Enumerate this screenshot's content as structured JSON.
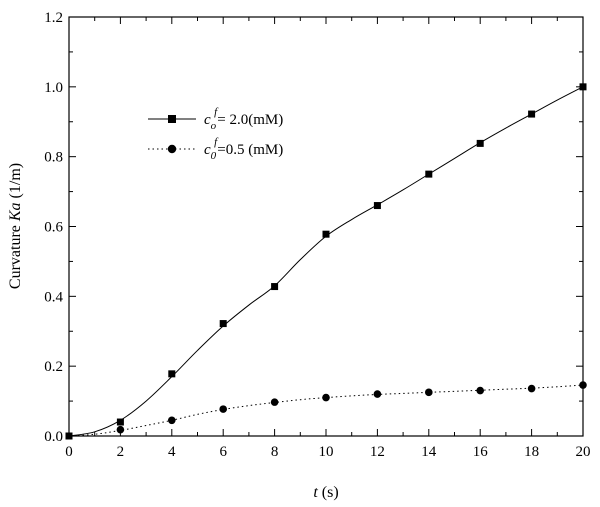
{
  "chart_data": {
    "type": "line",
    "xlabel_var": "t",
    "xlabel_unit": " (s)",
    "ylabel_text": "Curvature ",
    "ylabel_var": "Ka",
    "ylabel_unit": " (1/m)",
    "xlim": [
      0,
      20
    ],
    "ylim": [
      0,
      1.2
    ],
    "xticks": [
      0,
      2,
      4,
      6,
      8,
      10,
      12,
      14,
      16,
      18,
      20
    ],
    "yticks": [
      0.0,
      0.2,
      0.4,
      0.6,
      0.8,
      1.0,
      1.2
    ],
    "ytick_labels": [
      "0.0",
      "0.2",
      "0.4",
      "0.6",
      "0.8",
      "1.0",
      "1.2"
    ],
    "grid": false,
    "legend_position": "upper-left",
    "series": [
      {
        "legend_var": "c",
        "legend_sub": "o",
        "legend_sup": "f",
        "legend_value": "= 2.0(mM)",
        "marker": "square",
        "line_style": "solid",
        "x": [
          0,
          2,
          4,
          6,
          8,
          10,
          12,
          14,
          16,
          18,
          20
        ],
        "y": [
          0.0,
          0.04,
          0.178,
          0.322,
          0.428,
          0.578,
          0.66,
          0.75,
          0.838,
          0.922,
          1.0
        ],
        "curve_x": [
          0,
          1,
          2,
          3,
          4,
          5,
          6,
          7,
          8,
          9,
          10,
          11,
          12,
          13,
          14,
          15,
          16,
          17,
          18,
          19,
          20
        ],
        "curve_y": [
          0.0,
          0.012,
          0.045,
          0.1,
          0.17,
          0.245,
          0.315,
          0.375,
          0.43,
          0.505,
          0.572,
          0.62,
          0.662,
          0.705,
          0.75,
          0.795,
          0.84,
          0.882,
          0.922,
          0.962,
          1.0
        ]
      },
      {
        "legend_var": "c",
        "legend_sub": "0",
        "legend_sup": "f",
        "legend_value": "=0.5 (mM)",
        "marker": "circle",
        "line_style": "dotted",
        "x": [
          2,
          4,
          6,
          8,
          10,
          12,
          14,
          16,
          18,
          20
        ],
        "y": [
          0.018,
          0.045,
          0.077,
          0.097,
          0.11,
          0.12,
          0.125,
          0.13,
          0.136,
          0.146
        ],
        "curve_x": [
          0,
          1,
          2,
          3,
          4,
          5,
          6,
          7,
          8,
          9,
          10,
          11,
          12,
          13,
          14,
          15,
          16,
          17,
          18,
          19,
          20
        ],
        "curve_y": [
          0.0,
          0.005,
          0.016,
          0.03,
          0.045,
          0.062,
          0.076,
          0.087,
          0.096,
          0.104,
          0.11,
          0.115,
          0.119,
          0.122,
          0.125,
          0.128,
          0.131,
          0.134,
          0.137,
          0.141,
          0.146
        ]
      }
    ]
  }
}
